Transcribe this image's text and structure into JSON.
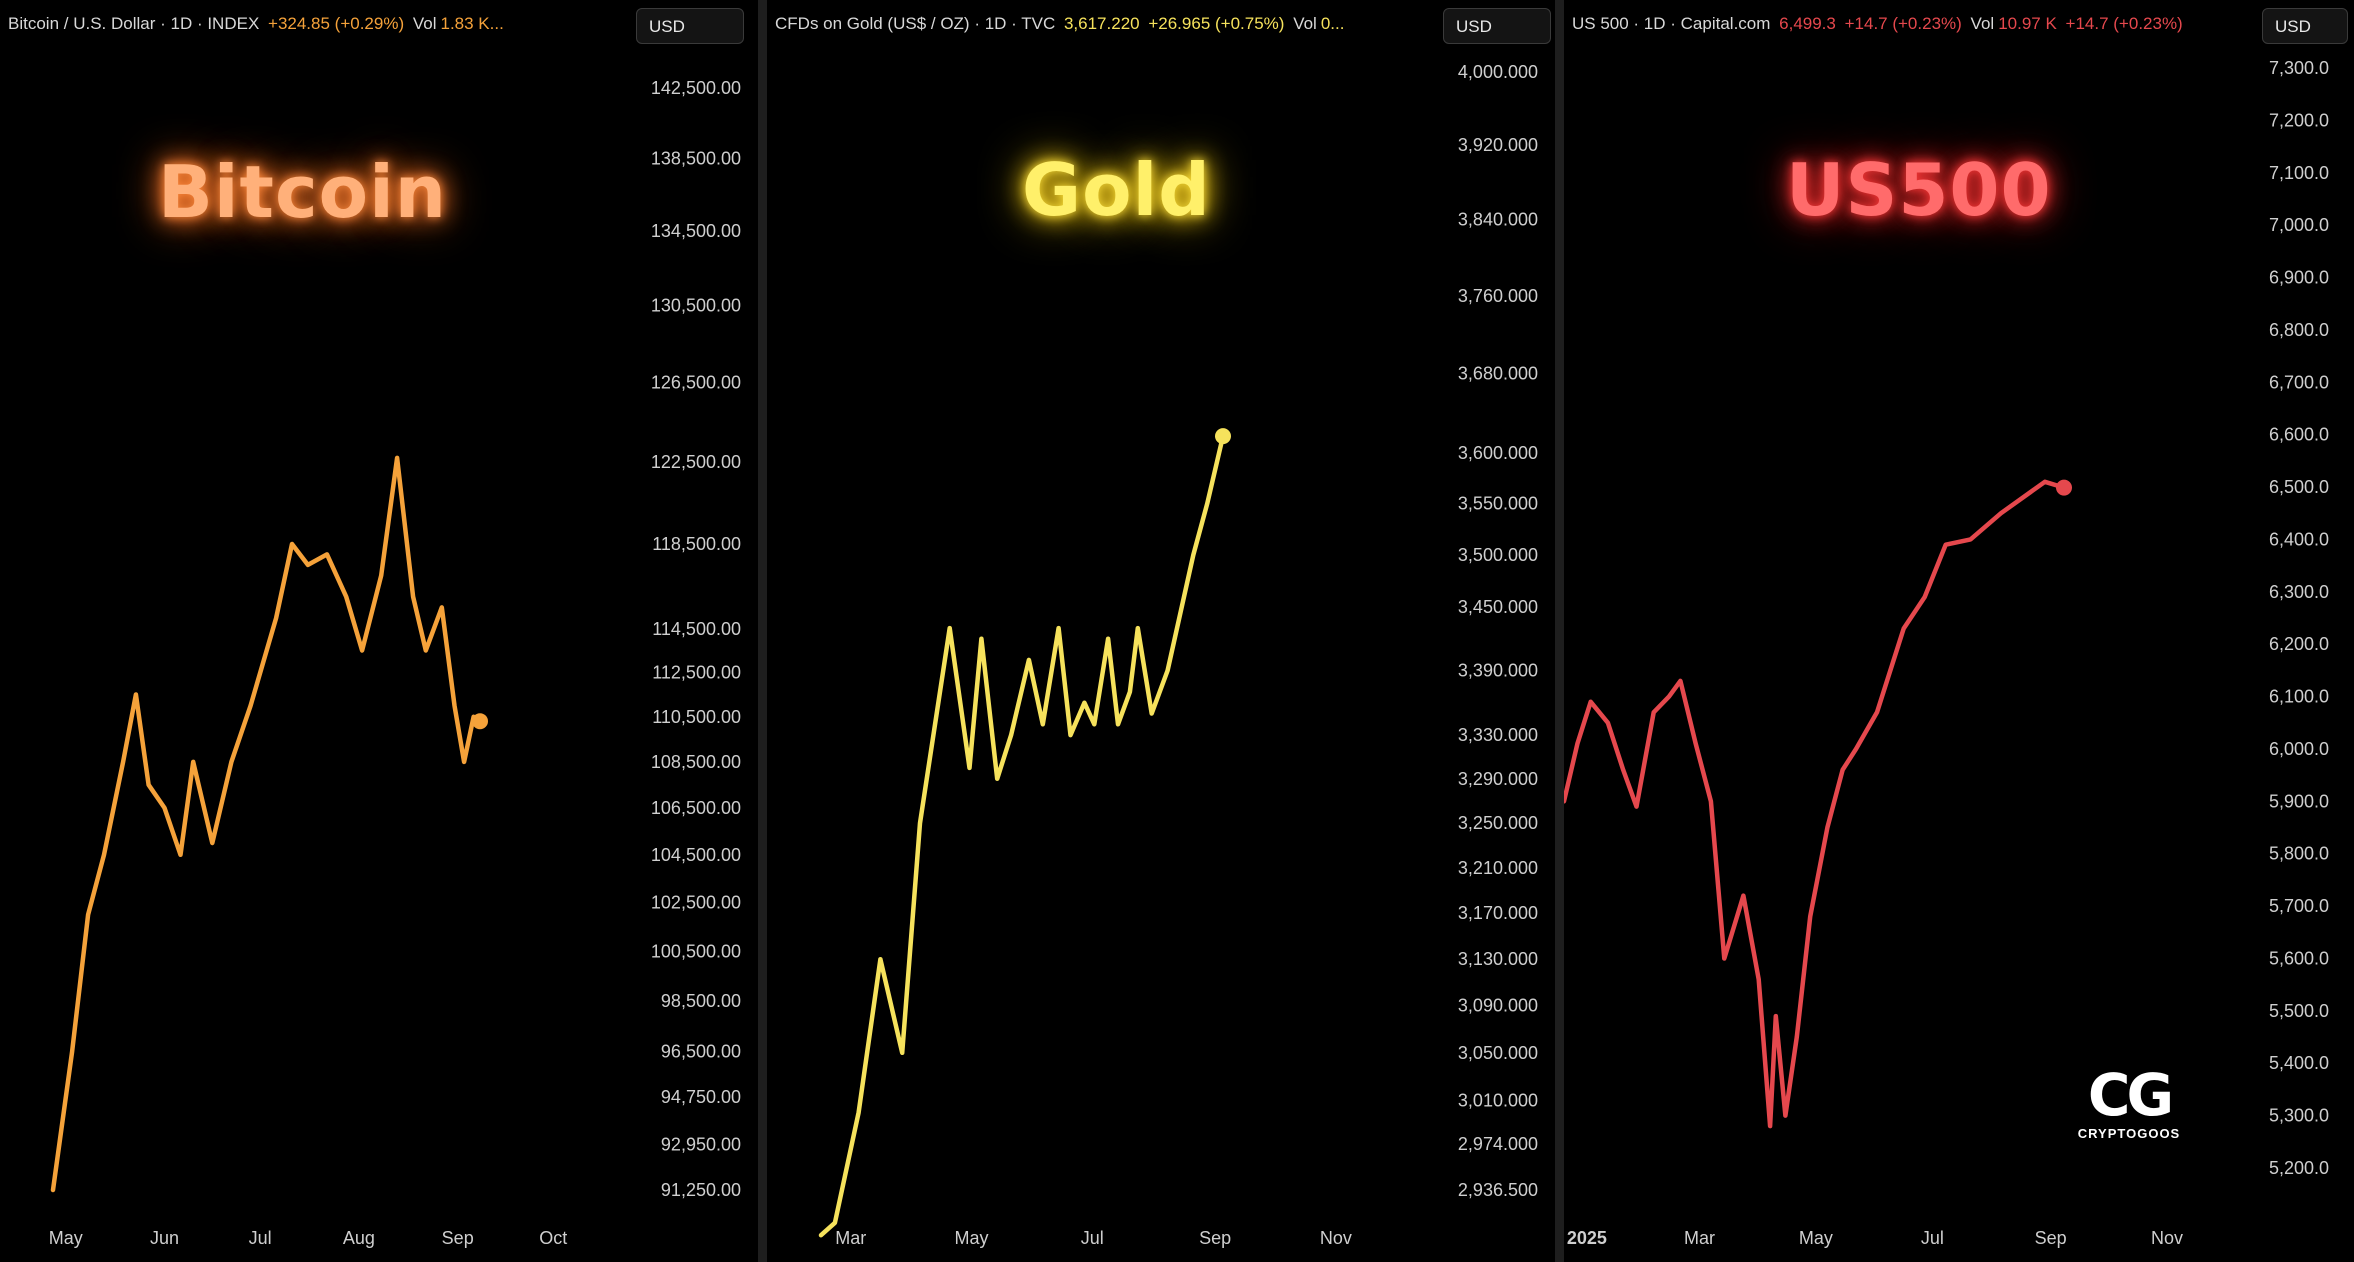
{
  "panels": [
    {
      "header": {
        "name": "Bitcoin / U.S. Dollar · 1D · INDEX",
        "change": "+324.85 (+0.29%)",
        "vol_label": "Vol",
        "vol_value": "1.83 K..."
      },
      "currency": "USD",
      "title": "Bitcoin",
      "color": "#f5a23a"
    },
    {
      "header": {
        "name": "CFDs on Gold (US$ / OZ) · 1D · TVC",
        "price": "3,617.220",
        "change": "+26.965 (+0.75%)",
        "vol_label": "Vol",
        "vol_value": "0..."
      },
      "currency": "USD",
      "title": "Gold",
      "color": "#f6e25c"
    },
    {
      "header": {
        "name": "US 500 · 1D · Capital.com",
        "price": "6,499.3",
        "change": "+14.7 (+0.23%)",
        "vol_label": "Vol",
        "vol_value": "10.97 K",
        "vol_change": "+14.7 (+0.23%)"
      },
      "currency": "USD",
      "title": "US500",
      "color": "#e5484d"
    }
  ],
  "logo": {
    "text": "CRYPTOGOOS"
  },
  "chart_data": [
    {
      "type": "line",
      "series": [
        {
          "values": [
            91250,
            96500,
            102000,
            104500,
            108500,
            111500,
            107500,
            106500,
            104500,
            108500,
            105000,
            108500,
            111000,
            115000,
            118500,
            117500,
            118000,
            116000,
            113500,
            117000,
            122700,
            116000,
            113500,
            115500,
            111000,
            108500,
            110500,
            110300
          ]
        }
      ],
      "x": [
        "2025-04-27",
        "2025-05-03",
        "2025-05-08",
        "2025-05-13",
        "2025-05-19",
        "2025-05-23",
        "2025-05-27",
        "2025-06-01",
        "2025-06-06",
        "2025-06-10",
        "2025-06-16",
        "2025-06-22",
        "2025-06-28",
        "2025-07-06",
        "2025-07-11",
        "2025-07-16",
        "2025-07-22",
        "2025-07-28",
        "2025-08-02",
        "2025-08-08",
        "2025-08-13",
        "2025-08-18",
        "2025-08-22",
        "2025-08-27",
        "2025-08-31",
        "2025-09-03",
        "2025-09-06",
        "2025-09-08"
      ],
      "y_ticks": [
        "142,500.00",
        "138,500.00",
        "134,500.00",
        "130,500.00",
        "126,500.00",
        "122,500.00",
        "118,500.00",
        "114,500.00",
        "112,500.00",
        "110,500.00",
        "108,500.00",
        "106,500.00",
        "104,500.00",
        "102,500.00",
        "100,500.00",
        "98,500.00",
        "96,500.00",
        "94,750.00",
        "92,950.00",
        "91,250.00"
      ],
      "x_ticks": [
        "May",
        "Jun",
        "Jul",
        "Aug",
        "Sep",
        "Oct"
      ],
      "scale": "log"
    },
    {
      "type": "line",
      "series": [
        {
          "values": [
            2900,
            2910,
            3000,
            3130,
            3050,
            3250,
            3430,
            3300,
            3420,
            3290,
            3330,
            3400,
            3340,
            3430,
            3330,
            3360,
            3340,
            3420,
            3340,
            3370,
            3430,
            3350,
            3390,
            3500,
            3550,
            3617
          ]
        }
      ],
      "x": [
        "2025-02-14",
        "2025-02-21",
        "2025-03-05",
        "2025-03-16",
        "2025-03-27",
        "2025-04-05",
        "2025-04-20",
        "2025-04-30",
        "2025-05-06",
        "2025-05-14",
        "2025-05-21",
        "2025-05-30",
        "2025-06-06",
        "2025-06-14",
        "2025-06-20",
        "2025-06-27",
        "2025-07-02",
        "2025-07-09",
        "2025-07-14",
        "2025-07-20",
        "2025-07-24",
        "2025-07-31",
        "2025-08-08",
        "2025-08-21",
        "2025-08-28",
        "2025-09-05"
      ],
      "y_ticks": [
        "4,000.000",
        "3,920.000",
        "3,840.000",
        "3,760.000",
        "3,680.000",
        "3,600.000",
        "3,550.000",
        "3,500.000",
        "3,450.000",
        "3,390.000",
        "3,330.000",
        "3,290.000",
        "3,250.000",
        "3,210.000",
        "3,170.000",
        "3,130.000",
        "3,090.000",
        "3,050.000",
        "3,010.000",
        "2,974.000",
        "2,936.500"
      ],
      "x_ticks": [
        "Mar",
        "May",
        "Jul",
        "Sep",
        "Nov"
      ],
      "scale": "log"
    },
    {
      "type": "line",
      "series": [
        {
          "values": [
            5900,
            6010,
            6090,
            6050,
            5960,
            5890,
            6070,
            6100,
            6130,
            6010,
            5900,
            5600,
            5720,
            5560,
            5280,
            5490,
            5300,
            5450,
            5680,
            5850,
            5960,
            6000,
            6070,
            6230,
            6290,
            6390,
            6400,
            6450,
            6510,
            6499
          ]
        }
      ],
      "x": [
        "2024-12-20",
        "2024-12-27",
        "2025-01-03",
        "2025-01-12",
        "2025-01-20",
        "2025-01-27",
        "2025-02-05",
        "2025-02-13",
        "2025-02-19",
        "2025-02-27",
        "2025-03-07",
        "2025-03-14",
        "2025-03-24",
        "2025-04-01",
        "2025-04-07",
        "2025-04-10",
        "2025-04-15",
        "2025-04-21",
        "2025-04-28",
        "2025-05-07",
        "2025-05-15",
        "2025-05-22",
        "2025-06-02",
        "2025-06-16",
        "2025-06-27",
        "2025-07-08",
        "2025-07-21",
        "2025-08-06",
        "2025-08-29",
        "2025-09-08"
      ],
      "y_ticks": [
        "7,300.0",
        "7,200.0",
        "7,100.0",
        "7,000.0",
        "6,900.0",
        "6,800.0",
        "6,700.0",
        "6,600.0",
        "6,500.0",
        "6,400.0",
        "6,300.0",
        "6,200.0",
        "6,100.0",
        "6,000.0",
        "5,900.0",
        "5,800.0",
        "5,700.0",
        "5,600.0",
        "5,500.0",
        "5,400.0",
        "5,300.0",
        "5,200.0"
      ],
      "x_ticks": [
        "2025",
        "Mar",
        "May",
        "Jul",
        "Sep",
        "Nov"
      ],
      "scale": "linear"
    }
  ]
}
